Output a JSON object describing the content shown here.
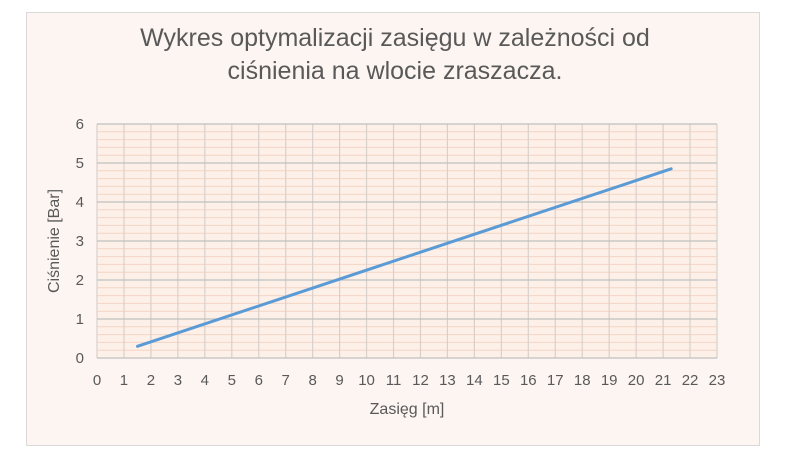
{
  "chart_data": {
    "type": "line",
    "title": "Wykres optymalizacji zasięgu w zależności od ciśnienia na wlocie zraszacza.",
    "xlabel": "Zasięg [m]",
    "ylabel": "Ciśnienie [Bar]",
    "xlim": [
      0,
      23
    ],
    "ylim": [
      0,
      6
    ],
    "x_ticks": [
      0,
      1,
      2,
      3,
      4,
      5,
      6,
      7,
      8,
      9,
      10,
      11,
      12,
      13,
      14,
      15,
      16,
      17,
      18,
      19,
      20,
      21,
      22,
      23
    ],
    "y_ticks": [
      0,
      1,
      2,
      3,
      4,
      5,
      6
    ],
    "grid": true,
    "minor_grid": true,
    "legend": "none",
    "series": [
      {
        "x": [
          1.5,
          21.3
        ],
        "y": [
          0.3,
          4.85
        ],
        "color": "#5b9bd5"
      }
    ],
    "colors": {
      "background": "#fdf5f1",
      "plot_area": "#fdf0e8",
      "major_grid": "#bfbfbf",
      "minor_grid": "#f4d4c4"
    }
  }
}
